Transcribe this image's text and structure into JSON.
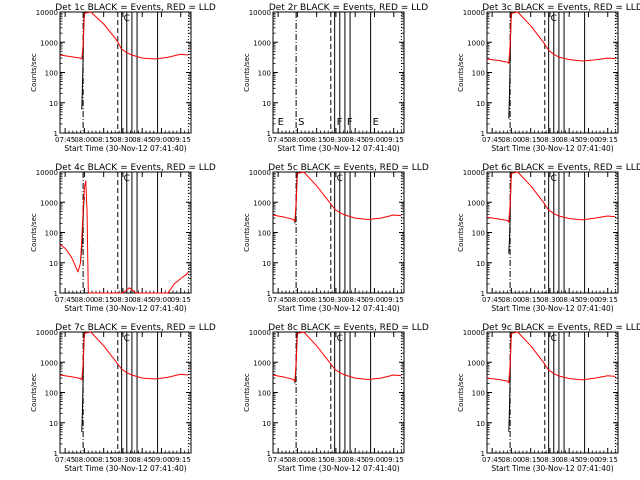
{
  "figure": {
    "xlabel": "Start Time (30-Nov-12 07:41:40)",
    "ylabel": "Counts/sec",
    "x_ticks": [
      "07:45",
      "08:00",
      "08:15",
      "08:30",
      "08:45",
      "09:00",
      "09:15"
    ],
    "y_ticks": [
      "1",
      "10",
      "100",
      "1000",
      "10000"
    ],
    "colors": {
      "events": "#000000",
      "lld": "#ff0000",
      "axes": "#000000",
      "background": "#ffffff"
    }
  },
  "chart_data": [
    {
      "type": "line",
      "title": "Det 1c BLACK = Events, RED = LLD",
      "xlabel": "Start Time (30-Nov-12 07:41:40)",
      "ylabel": "Counts/sec",
      "xlim": [
        "07:41",
        "09:23"
      ],
      "ylim": [
        1,
        10000
      ],
      "ylog": true,
      "vlines_dashdot": [
        "07:59"
      ],
      "vlines_dashed": [
        "08:26"
      ],
      "vlines_solid": [
        "08:29",
        "08:33",
        "08:37",
        "08:41",
        "08:57"
      ],
      "vlines_dotted": [
        "09:21"
      ],
      "series": [
        {
          "name": "BLACK = Events",
          "color": "#000000",
          "x": [
            "07:58",
            "07:58.5",
            "07:59",
            "07:59.5",
            "08:00"
          ],
          "y": [
            6,
            40,
            300,
            5000,
            10000
          ]
        },
        {
          "name": "RED = LLD",
          "color": "#ff0000",
          "x": [
            "07:41",
            "07:50",
            "07:57",
            "07:58",
            "07:59",
            "08:00",
            "08:05",
            "08:15",
            "08:25",
            "08:29",
            "08:33",
            "08:37",
            "08:45",
            "08:55",
            "09:05",
            "09:15",
            "09:21"
          ],
          "y": [
            380,
            330,
            300,
            280,
            800,
            9000,
            10000,
            4000,
            1200,
            600,
            450,
            380,
            300,
            280,
            320,
            400,
            380
          ]
        }
      ],
      "markers": [
        "C"
      ]
    },
    {
      "type": "line",
      "title": "Det 2r BLACK = Events, RED = LLD",
      "xlabel": "Start Time (30-Nov-12 07:41:40)",
      "ylabel": "Counts/sec",
      "xlim": [
        "07:41",
        "09:23"
      ],
      "ylim": [
        1,
        10000
      ],
      "ylog": true,
      "vlines_dashdot": [
        "07:59"
      ],
      "vlines_dashed": [
        "08:26"
      ],
      "vlines_solid": [
        "08:29",
        "08:33",
        "08:37",
        "08:41",
        "08:57"
      ],
      "vlines_dotted": [
        "09:21"
      ],
      "series": [],
      "markers": [
        "E",
        "S",
        "F",
        "F",
        "E"
      ]
    },
    {
      "type": "line",
      "title": "Det 3c BLACK = Events, RED = LLD",
      "xlabel": "Start Time (30-Nov-12 07:41:40)",
      "ylabel": "Counts/sec",
      "xlim": [
        "07:41",
        "09:23"
      ],
      "ylim": [
        1,
        10000
      ],
      "ylog": true,
      "vlines_dashdot": [
        "07:59"
      ],
      "vlines_dashed": [
        "08:26"
      ],
      "vlines_solid": [
        "08:29",
        "08:33",
        "08:37",
        "08:41",
        "08:57"
      ],
      "vlines_dotted": [
        "09:21"
      ],
      "series": [
        {
          "name": "BLACK = Events",
          "color": "#000000",
          "x": [
            "07:58",
            "07:58.5",
            "07:59",
            "07:59.5",
            "08:00"
          ],
          "y": [
            3,
            20,
            200,
            4000,
            10000
          ]
        },
        {
          "name": "RED = LLD",
          "color": "#ff0000",
          "x": [
            "07:41",
            "07:50",
            "07:57",
            "07:58",
            "07:59",
            "08:00",
            "08:05",
            "08:15",
            "08:25",
            "08:29",
            "08:33",
            "08:37",
            "08:45",
            "08:55",
            "09:05",
            "09:15",
            "09:21"
          ],
          "y": [
            280,
            250,
            220,
            200,
            800,
            9000,
            10000,
            3500,
            1000,
            550,
            400,
            320,
            270,
            240,
            260,
            300,
            290
          ]
        }
      ],
      "markers": [
        "C"
      ]
    },
    {
      "type": "line",
      "title": "Det 4c BLACK = Events, RED = LLD",
      "xlabel": "Start Time (30-Nov-12 07:41:40)",
      "ylabel": "Counts/sec",
      "xlim": [
        "07:41",
        "09:23"
      ],
      "ylim": [
        1,
        10000
      ],
      "ylog": true,
      "vlines_dashdot": [
        "07:59"
      ],
      "vlines_dashed": [
        "08:26"
      ],
      "vlines_solid": [
        "08:29",
        "08:33",
        "08:37",
        "08:41",
        "08:57"
      ],
      "vlines_dotted": [
        "09:21"
      ],
      "series": [
        {
          "name": "BLACK = Events",
          "color": "#000000",
          "x": [
            "07:57",
            "07:58",
            "07:58.5",
            "07:59",
            "07:59.5",
            "08:00"
          ],
          "y": [
            10,
            30,
            80,
            300,
            1000,
            1500
          ]
        },
        {
          "name": "RED = LLD",
          "color": "#ff0000",
          "x": [
            "07:41",
            "07:45",
            "07:50",
            "07:55",
            "07:57",
            "07:58",
            "07:59",
            "08:00",
            "08:01",
            "08:02",
            "08:03",
            "08:05",
            "08:30",
            "08:35",
            "08:40",
            "09:05",
            "09:10",
            "09:15",
            "09:19",
            "09:21"
          ],
          "y": [
            40,
            30,
            15,
            5,
            10,
            60,
            500,
            3000,
            5000,
            600,
            1,
            1,
            1,
            1.5,
            1,
            1,
            2,
            3,
            4,
            5
          ]
        }
      ],
      "markers": [
        "C"
      ]
    },
    {
      "type": "line",
      "title": "Det 5c BLACK = Events, RED = LLD",
      "xlabel": "Start Time (30-Nov-12 07:41:40)",
      "ylabel": "Counts/sec",
      "xlim": [
        "07:41",
        "09:23"
      ],
      "ylim": [
        1,
        10000
      ],
      "ylog": true,
      "vlines_dashdot": [
        "07:59"
      ],
      "vlines_dashed": [
        "08:26"
      ],
      "vlines_solid": [
        "08:29",
        "08:33",
        "08:37",
        "08:41",
        "08:57"
      ],
      "vlines_dotted": [
        "09:21"
      ],
      "series": [
        {
          "name": "BLACK = Events",
          "color": "#000000",
          "x": [
            "07:58",
            "07:58.5",
            "07:59",
            "07:59.5",
            "08:00"
          ],
          "y": [
            200,
            300,
            1000,
            5000,
            10000
          ]
        },
        {
          "name": "RED = LLD",
          "color": "#ff0000",
          "x": [
            "07:41",
            "07:50",
            "07:57",
            "07:58",
            "07:59",
            "08:00",
            "08:05",
            "08:15",
            "08:25",
            "08:29",
            "08:33",
            "08:37",
            "08:45",
            "08:55",
            "09:05",
            "09:15",
            "09:21"
          ],
          "y": [
            380,
            320,
            270,
            230,
            900,
            9000,
            10000,
            3500,
            1000,
            600,
            450,
            380,
            300,
            270,
            300,
            380,
            360
          ]
        }
      ],
      "markers": [
        "C"
      ]
    },
    {
      "type": "line",
      "title": "Det 6c BLACK = Events, RED = LLD",
      "xlabel": "Start Time (30-Nov-12 07:41:40)",
      "ylabel": "Counts/sec",
      "xlim": [
        "07:41",
        "09:23"
      ],
      "ylim": [
        1,
        10000
      ],
      "ylog": true,
      "vlines_dashdot": [
        "07:59"
      ],
      "vlines_dashed": [
        "08:26"
      ],
      "vlines_solid": [
        "08:29",
        "08:33",
        "08:37",
        "08:41",
        "08:57"
      ],
      "vlines_dotted": [
        "09:21"
      ],
      "series": [
        {
          "name": "BLACK = Events",
          "color": "#000000",
          "x": [
            "07:58",
            "07:58.5",
            "07:59",
            "07:59.5",
            "08:00"
          ],
          "y": [
            20,
            60,
            300,
            4000,
            10000
          ]
        },
        {
          "name": "RED = LLD",
          "color": "#ff0000",
          "x": [
            "07:41",
            "07:50",
            "07:57",
            "07:58",
            "07:59",
            "08:00",
            "08:05",
            "08:15",
            "08:25",
            "08:29",
            "08:33",
            "08:37",
            "08:45",
            "08:55",
            "09:05",
            "09:15",
            "09:21"
          ],
          "y": [
            320,
            280,
            250,
            220,
            800,
            9000,
            10000,
            3500,
            1000,
            550,
            420,
            350,
            290,
            260,
            300,
            350,
            330
          ]
        }
      ],
      "markers": [
        "C"
      ]
    },
    {
      "type": "line",
      "title": "Det 7c BLACK = Events, RED = LLD",
      "xlabel": "Start Time (30-Nov-12 07:41:40)",
      "ylabel": "Counts/sec",
      "xlim": [
        "07:41",
        "09:23"
      ],
      "ylim": [
        1,
        10000
      ],
      "ylog": true,
      "vlines_dashdot": [
        "07:59"
      ],
      "vlines_dashed": [
        "08:26"
      ],
      "vlines_solid": [
        "08:29",
        "08:33",
        "08:37",
        "08:41",
        "08:57"
      ],
      "vlines_dotted": [
        "09:21"
      ],
      "series": [
        {
          "name": "BLACK = Events",
          "color": "#000000",
          "x": [
            "07:58",
            "07:58.5",
            "07:59",
            "07:59.5",
            "08:00"
          ],
          "y": [
            5,
            30,
            300,
            5000,
            10000
          ]
        },
        {
          "name": "RED = LLD",
          "color": "#ff0000",
          "x": [
            "07:41",
            "07:50",
            "07:57",
            "07:58",
            "07:59",
            "08:00",
            "08:05",
            "08:15",
            "08:25",
            "08:29",
            "08:33",
            "08:37",
            "08:45",
            "08:55",
            "09:05",
            "09:15",
            "09:21"
          ],
          "y": [
            380,
            330,
            290,
            260,
            900,
            9000,
            10000,
            3500,
            1000,
            600,
            450,
            380,
            300,
            280,
            320,
            400,
            380
          ]
        }
      ],
      "markers": [
        "C"
      ]
    },
    {
      "type": "line",
      "title": "Det 8c BLACK = Events, RED = LLD",
      "xlabel": "Start Time (30-Nov-12 07:41:40)",
      "ylabel": "Counts/sec",
      "xlim": [
        "07:41",
        "09:23"
      ],
      "ylim": [
        1,
        10000
      ],
      "ylog": true,
      "vlines_dashdot": [
        "07:59"
      ],
      "vlines_dashed": [
        "08:26"
      ],
      "vlines_solid": [
        "08:29",
        "08:33",
        "08:37",
        "08:41",
        "08:57"
      ],
      "vlines_dotted": [
        "09:21"
      ],
      "series": [
        {
          "name": "BLACK = Events",
          "color": "#000000",
          "x": [
            "07:58",
            "07:58.5",
            "07:59",
            "07:59.5",
            "08:00"
          ],
          "y": [
            200,
            300,
            1000,
            5000,
            10000
          ]
        },
        {
          "name": "RED = LLD",
          "color": "#ff0000",
          "x": [
            "07:41",
            "07:50",
            "07:57",
            "07:58",
            "07:59",
            "08:00",
            "08:05",
            "08:15",
            "08:25",
            "08:29",
            "08:33",
            "08:37",
            "08:45",
            "08:55",
            "09:05",
            "09:15",
            "09:21"
          ],
          "y": [
            380,
            320,
            270,
            230,
            900,
            9000,
            10000,
            3500,
            1000,
            600,
            450,
            380,
            300,
            270,
            300,
            380,
            360
          ]
        }
      ],
      "markers": [
        "C"
      ]
    },
    {
      "type": "line",
      "title": "Det 9c BLACK = Events, RED = LLD",
      "xlabel": "Start Time (30-Nov-12 07:41:40)",
      "ylabel": "Counts/sec",
      "xlim": [
        "07:41",
        "09:23"
      ],
      "ylim": [
        1,
        10000
      ],
      "ylog": true,
      "vlines_dashdot": [
        "07:59"
      ],
      "vlines_dashed": [
        "08:26"
      ],
      "vlines_solid": [
        "08:29",
        "08:33",
        "08:37",
        "08:41",
        "08:57"
      ],
      "vlines_dotted": [
        "09:21"
      ],
      "series": [
        {
          "name": "BLACK = Events",
          "color": "#000000",
          "x": [
            "07:58",
            "07:58.5",
            "07:59",
            "07:59.5",
            "08:00"
          ],
          "y": [
            5,
            30,
            300,
            5000,
            10000
          ]
        },
        {
          "name": "RED = LLD",
          "color": "#ff0000",
          "x": [
            "07:41",
            "07:50",
            "07:57",
            "07:58",
            "07:59",
            "08:00",
            "08:05",
            "08:15",
            "08:25",
            "08:29",
            "08:33",
            "08:37",
            "08:45",
            "08:55",
            "09:05",
            "09:15",
            "09:21"
          ],
          "y": [
            300,
            270,
            240,
            210,
            800,
            9000,
            10000,
            3500,
            1000,
            550,
            420,
            350,
            290,
            260,
            300,
            360,
            340
          ]
        }
      ],
      "markers": [
        "C"
      ]
    }
  ]
}
